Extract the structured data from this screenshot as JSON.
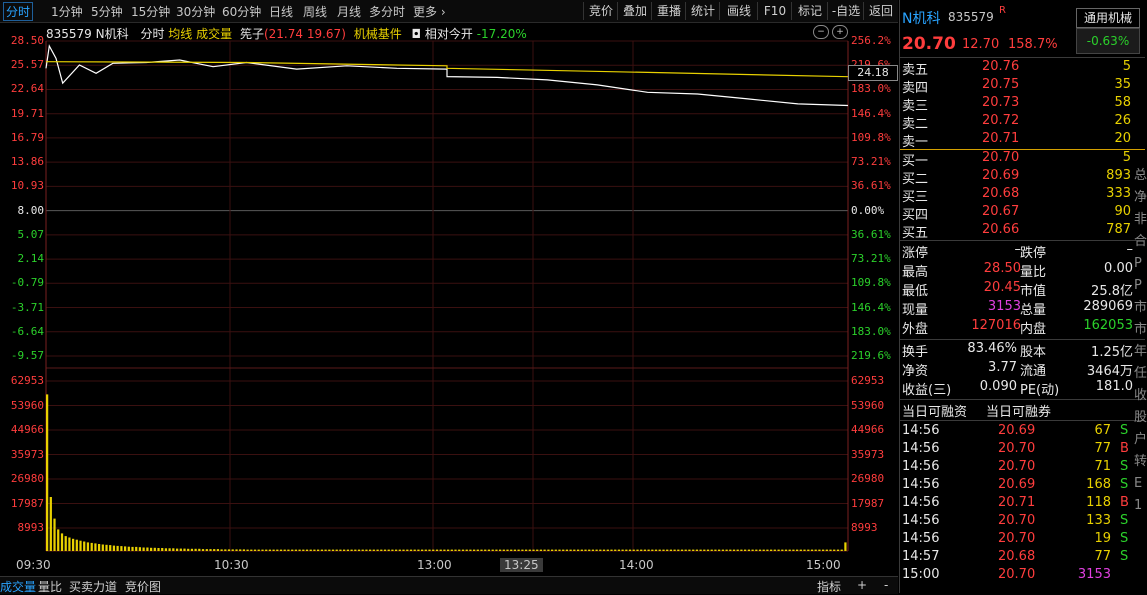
{
  "toolbar": {
    "periods": [
      "分时",
      "1分钟",
      "5分钟",
      "15分钟",
      "30分钟",
      "60分钟",
      "日线",
      "周线",
      "月线",
      "多分时",
      "更多"
    ],
    "more_icon": "chevron-right-icon",
    "right_buttons": [
      "竞价",
      "叠加",
      "重播",
      "统计",
      "画线",
      "F10",
      "标记",
      "-自选",
      "返回"
    ]
  },
  "chart_header": {
    "code_name": "835579 N机科",
    "tab_fenshi": "分时",
    "tab_junxian": "均线",
    "tab_volume": "成交量",
    "zhuzi_label": "筅子",
    "zhuzi_values": "(21.74 19.67)",
    "sector": "机械基件",
    "camera_icon": "camera-icon",
    "relative_open_label": "相对今开",
    "relative_open_value": "-17.20%"
  },
  "price_axis": {
    "left": [
      "28.50",
      "25.57",
      "22.64",
      "19.71",
      "16.79",
      "13.86",
      "10.93",
      "8.00",
      "5.07",
      "2.14",
      "-0.79",
      "-3.71",
      "-6.64",
      "-9.57"
    ],
    "right": [
      "256.2%",
      "219.6%",
      "183.0%",
      "146.4%",
      "109.8%",
      "73.21%",
      "36.61%",
      "0.00%",
      "36.61%",
      "73.21%",
      "109.8%",
      "146.4%",
      "183.0%",
      "219.6%"
    ],
    "current_avg_tag": "24.18"
  },
  "volume_axis": {
    "left": [
      "62953",
      "53960",
      "44966",
      "35973",
      "26980",
      "17987",
      "8993"
    ],
    "right": [
      "62953",
      "53960",
      "44966",
      "35973",
      "26980",
      "17987",
      "8993"
    ]
  },
  "time_axis": {
    "labels": [
      "09:30",
      "10:30",
      "13:00",
      "13:25",
      "14:00",
      "15:00"
    ],
    "cursor": "13:25"
  },
  "bottom_tabs": [
    "成交量",
    "量比",
    "买卖力道",
    "竞价图"
  ],
  "bottom_right": {
    "indicator": "指标",
    "plus": "+",
    "minus": "-"
  },
  "chart_data": {
    "type": "line",
    "title": "",
    "x_range": [
      "09:30",
      "15:00"
    ],
    "ylim": [
      -9.57,
      28.5
    ],
    "base_price": 8.0,
    "series": [
      {
        "x": [
          "09:30",
          "09:31",
          "09:33",
          "09:35",
          "09:40",
          "09:45",
          "09:50",
          "10:00",
          "10:10",
          "10:20",
          "10:30",
          "10:45",
          "11:00",
          "11:15",
          "11:30",
          "13:00",
          "13:15",
          "13:30",
          "13:45",
          "14:00",
          "14:15",
          "14:30",
          "14:45",
          "15:00"
        ],
        "values": [
          25.2,
          27.9,
          26.4,
          23.4,
          25.6,
          24.6,
          25.8,
          25.9,
          26.2,
          25.4,
          25.9,
          25.1,
          25.5,
          25.2,
          25.1,
          24.2,
          24.1,
          23.8,
          23.2,
          22.3,
          22.1,
          21.5,
          20.9,
          20.7
        ]
      },
      {
        "x": [
          "09:30",
          "10:30",
          "11:30",
          "13:00",
          "14:00",
          "15:00"
        ],
        "values": [
          26.0,
          25.9,
          25.5,
          25.2,
          24.7,
          24.18
        ]
      }
    ],
    "volume_bars": [
      58000,
      20000,
      12000,
      8000,
      6500,
      5500,
      5000,
      4500,
      4200,
      3800,
      3500,
      3200,
      3000,
      2800,
      2600,
      2400,
      2300,
      2200,
      2000,
      1900,
      1800,
      1700,
      1600,
      1500,
      1500,
      1400,
      1300,
      1300,
      1200,
      1200,
      1100,
      1100,
      1000,
      1000,
      1000,
      900,
      900,
      900,
      800,
      800,
      800,
      800,
      700,
      700,
      700,
      700,
      700,
      600,
      600,
      600,
      600,
      600,
      600,
      600,
      500,
      500,
      500,
      500,
      500,
      500,
      500,
      500,
      500,
      500,
      500,
      500,
      500,
      500,
      500,
      500,
      500,
      500,
      500,
      500,
      500,
      500,
      500,
      500,
      500,
      500,
      500,
      500,
      500,
      500,
      500,
      500,
      500,
      500,
      500,
      500,
      500,
      500,
      500,
      500,
      500,
      500,
      500,
      500,
      500,
      500,
      500,
      500,
      500,
      500,
      500,
      500,
      500,
      500,
      500,
      500,
      500,
      500,
      500,
      500,
      500,
      500,
      500,
      500,
      500,
      500,
      500,
      500,
      500,
      500,
      500,
      500,
      500,
      500,
      500,
      500,
      500,
      500,
      500,
      500,
      500,
      500,
      500,
      500,
      500,
      500,
      500,
      500,
      500,
      500,
      500,
      500,
      500,
      500,
      500,
      500,
      500,
      500,
      500,
      500,
      500,
      500,
      500,
      500,
      500,
      500,
      500,
      500,
      500,
      500,
      500,
      500,
      500,
      500,
      500,
      500,
      500,
      500,
      500,
      500,
      500,
      500,
      500,
      500,
      500,
      500,
      500,
      500,
      500,
      500,
      500,
      500,
      500,
      500,
      500,
      500,
      500,
      500,
      500,
      500,
      500,
      500,
      500,
      500,
      500,
      500,
      500,
      500,
      500,
      500,
      500,
      500,
      500,
      500,
      500,
      500,
      500,
      500,
      500,
      500,
      500,
      3200
    ],
    "ylim_volume": [
      0,
      62953
    ],
    "colors": {
      "price": "#ffffff",
      "avg": "#e8d100",
      "volume": "#e8d100"
    },
    "grid": true
  },
  "quote": {
    "name": "N机科",
    "code": "835579",
    "marker": "R",
    "price": "20.70",
    "change": "12.70",
    "change_pct": "158.7%",
    "sector_btn": "通用机械",
    "sector_pct": "-0.63%",
    "asks": [
      {
        "label": "卖五",
        "price": "20.76",
        "vol": "5"
      },
      {
        "label": "卖四",
        "price": "20.75",
        "vol": "35"
      },
      {
        "label": "卖三",
        "price": "20.73",
        "vol": "58"
      },
      {
        "label": "卖二",
        "price": "20.72",
        "vol": "26"
      },
      {
        "label": "卖一",
        "price": "20.71",
        "vol": "20"
      }
    ],
    "bids": [
      {
        "label": "买一",
        "price": "20.70",
        "vol": "5"
      },
      {
        "label": "买二",
        "price": "20.69",
        "vol": "893"
      },
      {
        "label": "买三",
        "price": "20.68",
        "vol": "333"
      },
      {
        "label": "买四",
        "price": "20.67",
        "vol": "90"
      },
      {
        "label": "买五",
        "price": "20.66",
        "vol": "787"
      }
    ],
    "stats1": [
      {
        "l1": "涨停",
        "v1": "–",
        "l2": "跌停",
        "v2": "–",
        "c1": "white",
        "c2": "white"
      },
      {
        "l1": "最高",
        "v1": "28.50",
        "l2": "量比",
        "v2": "0.00",
        "c1": "red",
        "c2": "white"
      },
      {
        "l1": "最低",
        "v1": "20.45",
        "l2": "市值",
        "v2": "25.8亿",
        "c1": "red",
        "c2": "white"
      },
      {
        "l1": "现量",
        "v1": "3153",
        "l2": "总量",
        "v2": "289069",
        "c1": "magenta",
        "c2": "white"
      },
      {
        "l1": "外盘",
        "v1": "127016",
        "l2": "内盘",
        "v2": "162053",
        "c1": "red",
        "c2": "green"
      }
    ],
    "stats2": [
      {
        "l1": "换手",
        "v1": "83.46%",
        "l2": "股本",
        "v2": "1.25亿"
      },
      {
        "l1": "净资",
        "v1": "3.77",
        "l2": "流通",
        "v2": "3464万"
      },
      {
        "l1": "收益(三)",
        "v1": "0.090",
        "l2": "PE(动)",
        "v2": "181.0"
      }
    ],
    "margin_labels": [
      "当日可融资",
      "当日可融券"
    ],
    "ticks": [
      {
        "time": "14:56",
        "price": "20.69",
        "vol": "67",
        "flag": "S",
        "pc": "red",
        "vc": "yellow"
      },
      {
        "time": "14:56",
        "price": "20.70",
        "vol": "77",
        "flag": "B",
        "pc": "red",
        "vc": "yellow"
      },
      {
        "time": "14:56",
        "price": "20.70",
        "vol": "71",
        "flag": "S",
        "pc": "red",
        "vc": "yellow"
      },
      {
        "time": "14:56",
        "price": "20.69",
        "vol": "168",
        "flag": "S",
        "pc": "red",
        "vc": "yellow"
      },
      {
        "time": "14:56",
        "price": "20.71",
        "vol": "118",
        "flag": "B",
        "pc": "red",
        "vc": "yellow"
      },
      {
        "time": "14:56",
        "price": "20.70",
        "vol": "133",
        "flag": "S",
        "pc": "red",
        "vc": "yellow"
      },
      {
        "time": "14:56",
        "price": "20.70",
        "vol": "19",
        "flag": "S",
        "pc": "red",
        "vc": "yellow"
      },
      {
        "time": "14:57",
        "price": "20.68",
        "vol": "77",
        "flag": "S",
        "pc": "red",
        "vc": "yellow"
      },
      {
        "time": "15:00",
        "price": "20.70",
        "vol": "3153",
        "flag": "",
        "pc": "red",
        "vc": "magenta"
      }
    ],
    "cutoff_side": [
      "总",
      "净",
      "非",
      "合",
      "P",
      "P",
      "市",
      "市",
      "年",
      "任",
      "收",
      "股",
      "户",
      "转",
      "E",
      "1"
    ]
  }
}
